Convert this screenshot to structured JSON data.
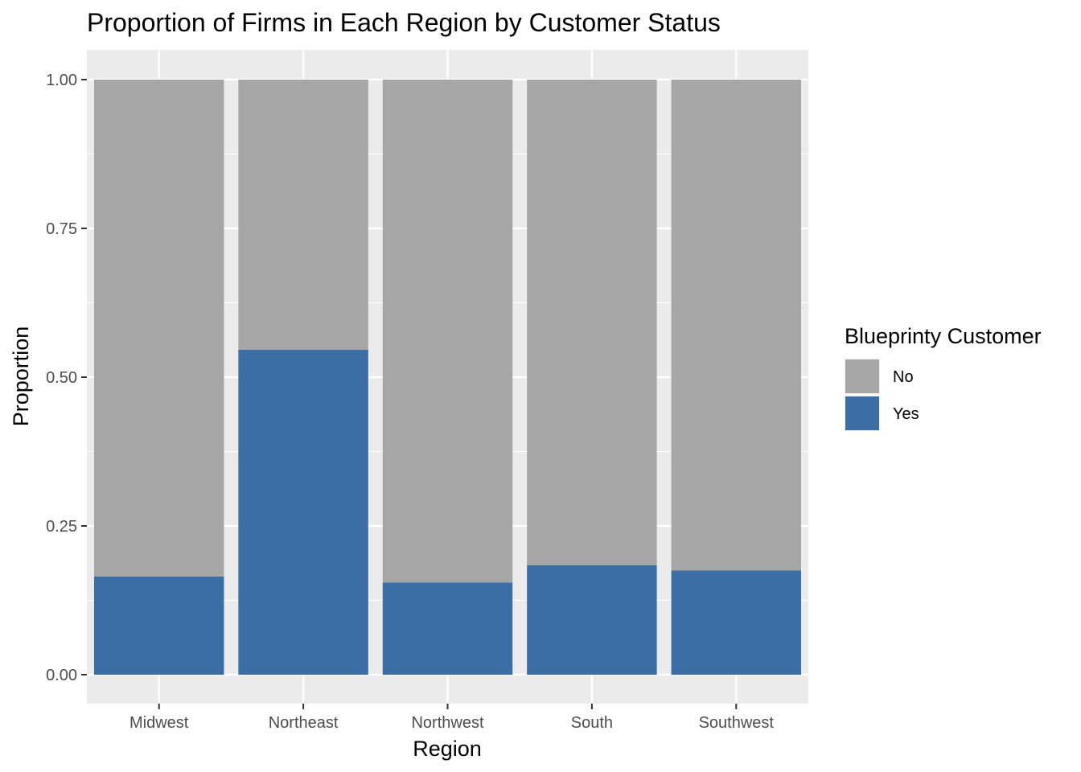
{
  "chart_data": {
    "type": "bar",
    "stacked": true,
    "title": "Proportion of Firms in Each Region by Customer Status",
    "xlabel": "Region",
    "ylabel": "Proportion",
    "ylim": [
      0,
      1
    ],
    "y_ticks": [
      "0.00",
      "0.25",
      "0.50",
      "0.75",
      "1.00"
    ],
    "categories": [
      "Midwest",
      "Northeast",
      "Northwest",
      "South",
      "Southwest"
    ],
    "series": [
      {
        "name": "Yes",
        "color": "#3a6ea5",
        "values": [
          0.165,
          0.546,
          0.155,
          0.184,
          0.175
        ]
      },
      {
        "name": "No",
        "color": "#a6a6a6",
        "values": [
          0.835,
          0.454,
          0.845,
          0.816,
          0.825
        ]
      }
    ],
    "grid": true,
    "legend": {
      "title": "Blueprinty Customer",
      "position": "right",
      "items": [
        {
          "label": "No",
          "color": "#a6a6a6"
        },
        {
          "label": "Yes",
          "color": "#3a6ea5"
        }
      ]
    }
  }
}
